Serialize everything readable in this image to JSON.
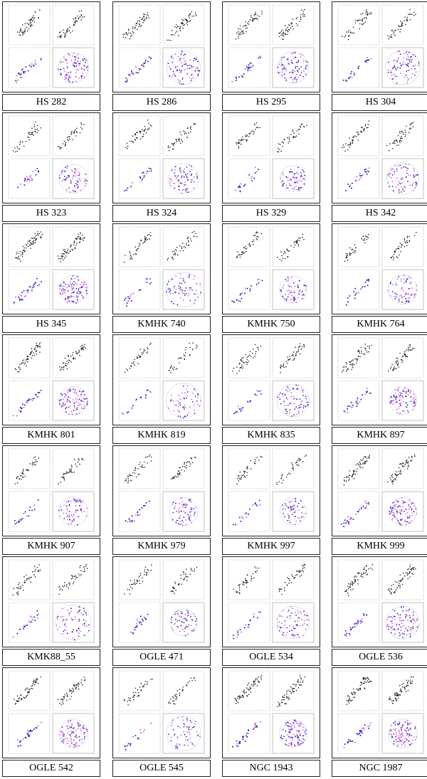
{
  "figure": {
    "clusters": [
      "HS 282",
      "HS 286",
      "HS 295",
      "HS 304",
      "HS 323",
      "HS 324",
      "HS 329",
      "HS 342",
      "HS 345",
      "KMHK 740",
      "KMHK 750",
      "KMHK 764",
      "KMHK 801",
      "KMHK 819",
      "KMHK 835",
      "KMHK 897",
      "KMHK 907",
      "KMHK 979",
      "KMHK 997",
      "KMHK 999",
      "KMK88_55",
      "OGLE 471",
      "OGLE 534",
      "OGLE 536",
      "OGLE 542",
      "OGLE 545",
      "NGC 1943",
      "NGC 1987"
    ],
    "colors": {
      "cmd_points": "#222222",
      "blue_points": "#2a2ab8",
      "magenta_points": "#d060d8",
      "frame": "#222222"
    },
    "layout": {
      "columns": 4,
      "rows": 7
    }
  }
}
